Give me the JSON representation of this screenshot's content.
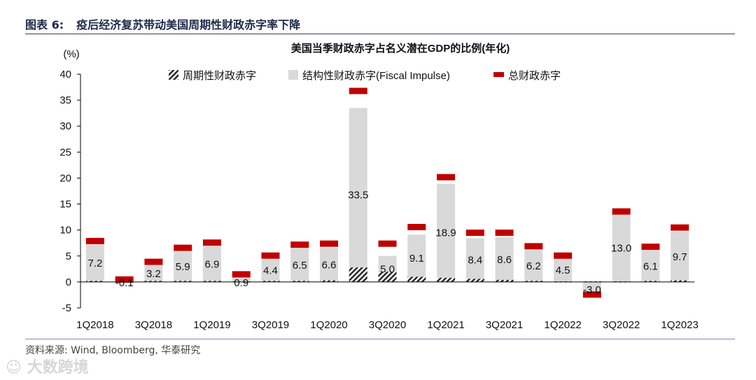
{
  "figure": {
    "label": "图表 6:",
    "title": "疫后经济复苏带动美国周期性财政赤字率下降",
    "source": "资料来源: Wind, Bloomberg, 华泰研究",
    "watermark": "大数跨境"
  },
  "colors": {
    "structural": "#d9d9d9",
    "total": "#c00000",
    "cyclical": "#222222",
    "axis": "#000000",
    "title": "#1c2a4a"
  },
  "chart_data": {
    "type": "bar",
    "title": "美国当季财政赤字占名义潜在GDP的比例(年化)",
    "ylabel": "(%)",
    "ylim": [
      -5,
      40
    ],
    "yticks": [
      -5,
      0,
      5,
      10,
      15,
      20,
      25,
      30,
      35,
      40
    ],
    "categories": [
      "1Q2018",
      "2Q2018",
      "3Q2018",
      "4Q2018",
      "1Q2019",
      "2Q2019",
      "3Q2019",
      "4Q2019",
      "1Q2020",
      "2Q2020",
      "3Q2020",
      "4Q2020",
      "1Q2021",
      "2Q2021",
      "3Q2021",
      "4Q2021",
      "1Q2022",
      "2Q2022",
      "3Q2022",
      "4Q2022",
      "1Q2023"
    ],
    "xtick_labels": [
      "1Q2018",
      "",
      "3Q2018",
      "",
      "1Q2019",
      "",
      "3Q2019",
      "",
      "1Q2020",
      "",
      "3Q2020",
      "",
      "1Q2021",
      "",
      "3Q2021",
      "",
      "1Q2022",
      "",
      "3Q2022",
      "",
      "1Q2023"
    ],
    "legend": {
      "position": "top",
      "items": [
        "周期性财政赤字",
        "结构性财政赤字(Fiscal Impulse)",
        "总财政赤字"
      ]
    },
    "series": [
      {
        "name": "周期性财政赤字",
        "values": [
          0.2,
          0.1,
          0.2,
          0.2,
          0.2,
          0.1,
          0.2,
          0.2,
          0.3,
          2.8,
          1.9,
          1.0,
          0.8,
          0.6,
          0.4,
          0.2,
          0.1,
          0.1,
          0.1,
          0.2,
          0.3
        ]
      },
      {
        "name": "结构性财政赤字(Fiscal Impulse)",
        "values": [
          7.2,
          -0.1,
          3.2,
          5.9,
          6.9,
          0.9,
          4.4,
          6.5,
          6.6,
          33.5,
          5.0,
          9.1,
          18.9,
          8.4,
          8.6,
          6.2,
          4.5,
          -3.0,
          13.0,
          6.1,
          9.7
        ]
      },
      {
        "name": "总财政赤字",
        "values": [
          7.4,
          0.0,
          3.4,
          6.1,
          7.1,
          1.0,
          4.6,
          6.7,
          6.9,
          36.3,
          6.9,
          10.1,
          19.7,
          9.0,
          9.0,
          6.4,
          4.6,
          -2.9,
          13.1,
          6.3,
          10.0
        ]
      }
    ]
  }
}
